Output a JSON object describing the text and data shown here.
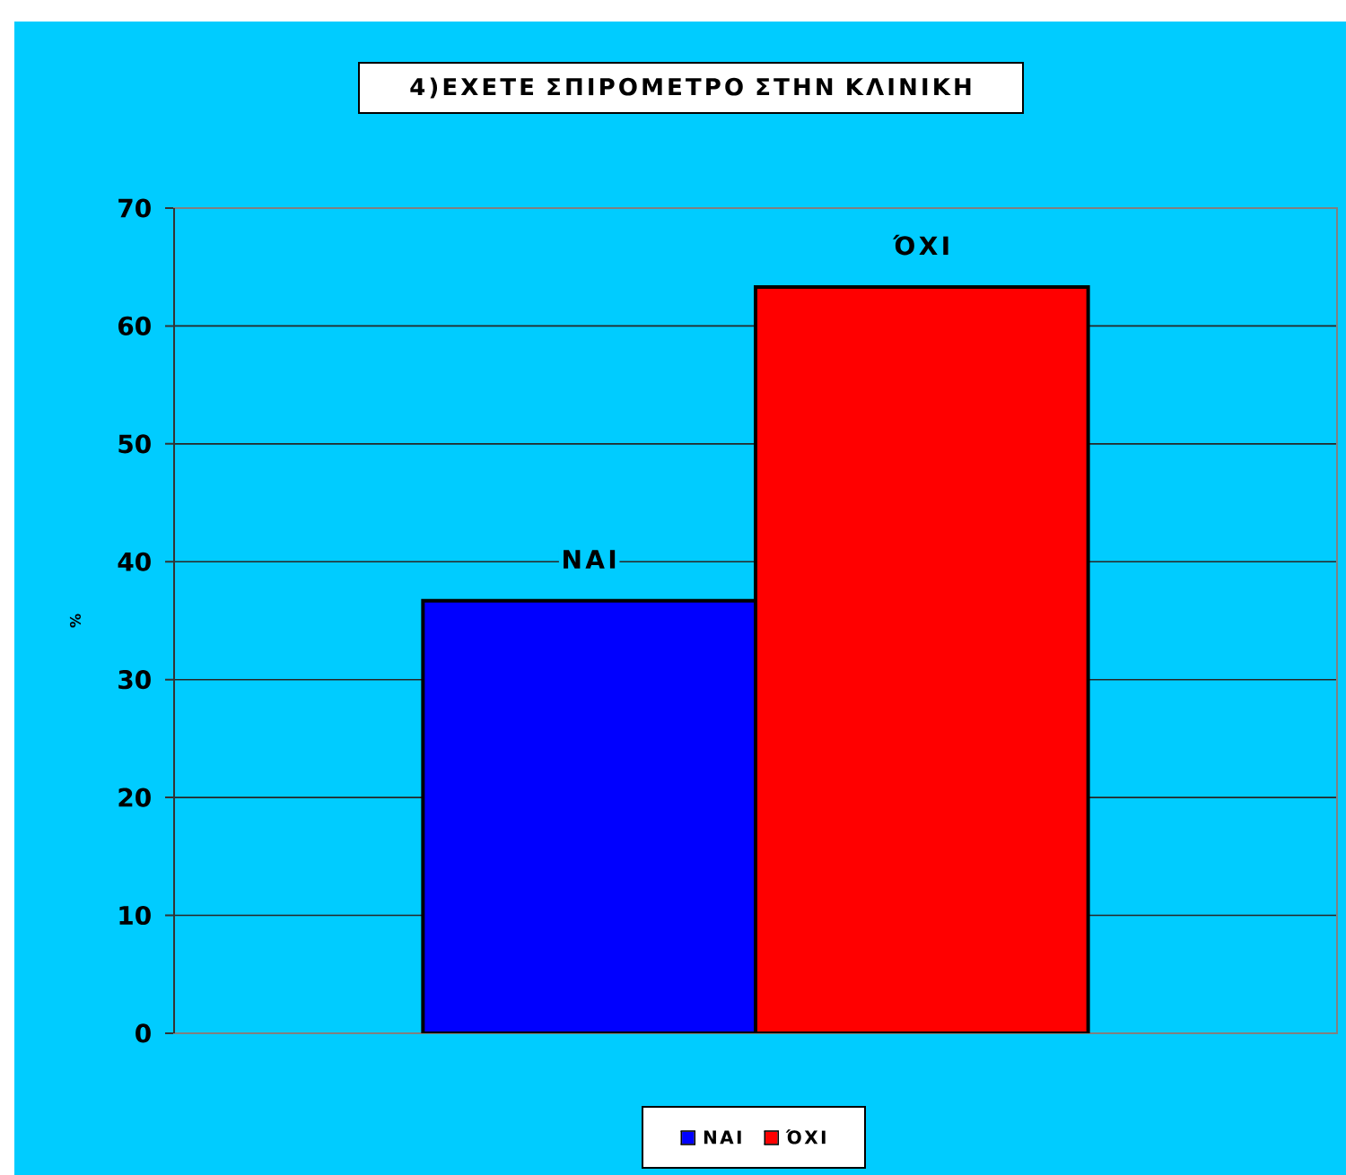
{
  "chart_data": {
    "type": "bar",
    "title": "4)ΕΧΕΤΕ ΣΠΙΡΟΜΕΤΡΟ ΣΤΗΝ ΚΛΙΝΙΚΗ",
    "ylabel": "%",
    "categories": [
      null
    ],
    "series": [
      {
        "name": "ΝΑΙ",
        "color": "#0000ff",
        "values": [
          36.7
        ],
        "value_labels": [
          "ΝΑΙ"
        ]
      },
      {
        "name": "ΌΧΙ",
        "color": "#ff0000",
        "values": [
          63.3
        ],
        "value_labels": [
          "ΌΧΙ"
        ]
      }
    ],
    "ylim": [
      0,
      70
    ],
    "yticks": [
      0,
      10,
      20,
      30,
      40,
      50,
      60,
      70
    ],
    "grid": "y",
    "legend": "bottom"
  }
}
